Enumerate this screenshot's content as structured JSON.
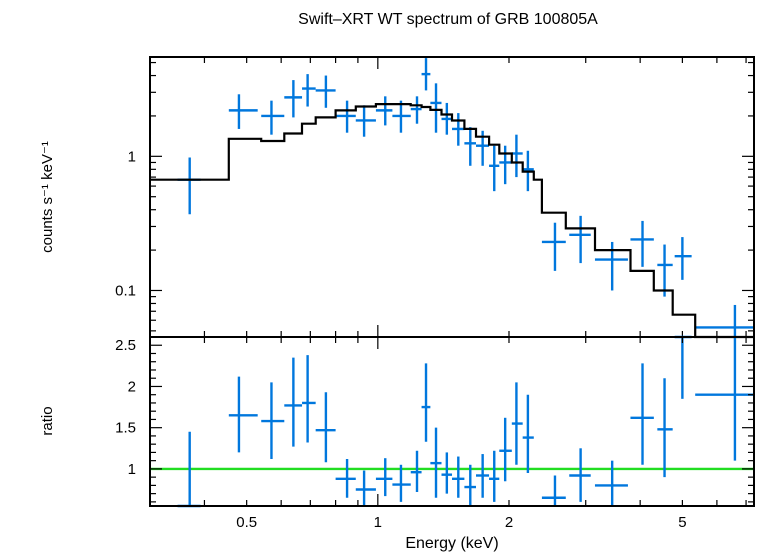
{
  "title": "Swift–XRT WT spectrum of GRB 100805A",
  "colors": {
    "data": "#0077dd",
    "model": "#000000",
    "unity": "#22dd22",
    "frame": "#000000"
  },
  "chart_data": [
    {
      "panel": "top",
      "type": "scatter",
      "title": "Swift–XRT WT spectrum of GRB 100805A",
      "xlabel": "",
      "ylabel": "counts s⁻¹ keV⁻¹",
      "xscale": "log",
      "yscale": "log",
      "xlim": [
        0.3,
        7.3
      ],
      "ylim": [
        0.045,
        5.5
      ],
      "ytick_labels": [
        {
          "value": 1,
          "label": "1"
        },
        {
          "value": 0.1,
          "label": "0.1"
        }
      ],
      "series": [
        {
          "kind": "data-with-errors",
          "points": [
            {
              "x": 0.37,
              "xlo": 0.347,
              "xhi": 0.392,
              "y": 0.67,
              "ylo": 0.37,
              "yhi": 0.98
            },
            {
              "x": 0.48,
              "xlo": 0.455,
              "xhi": 0.53,
              "y": 2.2,
              "ylo": 1.6,
              "yhi": 2.9
            },
            {
              "x": 0.57,
              "xlo": 0.54,
              "xhi": 0.61,
              "y": 2.0,
              "ylo": 1.45,
              "yhi": 2.6
            },
            {
              "x": 0.64,
              "xlo": 0.61,
              "xhi": 0.67,
              "y": 2.75,
              "ylo": 1.95,
              "yhi": 3.7
            },
            {
              "x": 0.69,
              "xlo": 0.67,
              "xhi": 0.72,
              "y": 3.2,
              "ylo": 2.35,
              "yhi": 4.1
            },
            {
              "x": 0.76,
              "xlo": 0.72,
              "xhi": 0.8,
              "y": 3.1,
              "ylo": 2.3,
              "yhi": 4.0
            },
            {
              "x": 0.85,
              "xlo": 0.8,
              "xhi": 0.89,
              "y": 2.0,
              "ylo": 1.5,
              "yhi": 2.6
            },
            {
              "x": 0.93,
              "xlo": 0.89,
              "xhi": 0.99,
              "y": 1.85,
              "ylo": 1.4,
              "yhi": 2.4
            },
            {
              "x": 1.04,
              "xlo": 0.99,
              "xhi": 1.08,
              "y": 2.2,
              "ylo": 1.7,
              "yhi": 2.8
            },
            {
              "x": 1.13,
              "xlo": 1.08,
              "xhi": 1.19,
              "y": 2.0,
              "ylo": 1.5,
              "yhi": 2.6
            },
            {
              "x": 1.23,
              "xlo": 1.19,
              "xhi": 1.26,
              "y": 2.25,
              "ylo": 1.75,
              "yhi": 2.8
            },
            {
              "x": 1.29,
              "xlo": 1.26,
              "xhi": 1.32,
              "y": 4.1,
              "ylo": 3.1,
              "yhi": 5.4
            },
            {
              "x": 1.36,
              "xlo": 1.32,
              "xhi": 1.4,
              "y": 2.5,
              "ylo": 1.5,
              "yhi": 3.5
            },
            {
              "x": 1.44,
              "xlo": 1.4,
              "xhi": 1.48,
              "y": 1.9,
              "ylo": 1.45,
              "yhi": 2.5
            },
            {
              "x": 1.53,
              "xlo": 1.48,
              "xhi": 1.58,
              "y": 1.6,
              "ylo": 1.2,
              "yhi": 2.1
            },
            {
              "x": 1.63,
              "xlo": 1.58,
              "xhi": 1.68,
              "y": 1.25,
              "ylo": 0.85,
              "yhi": 1.65
            },
            {
              "x": 1.74,
              "xlo": 1.68,
              "xhi": 1.8,
              "y": 1.2,
              "ylo": 0.85,
              "yhi": 1.55
            },
            {
              "x": 1.85,
              "xlo": 1.8,
              "xhi": 1.9,
              "y": 0.85,
              "ylo": 0.55,
              "yhi": 1.2
            },
            {
              "x": 1.96,
              "xlo": 1.9,
              "xhi": 2.03,
              "y": 0.9,
              "ylo": 0.62,
              "yhi": 1.2
            },
            {
              "x": 2.08,
              "xlo": 2.03,
              "xhi": 2.15,
              "y": 1.05,
              "ylo": 0.7,
              "yhi": 1.45
            },
            {
              "x": 2.21,
              "xlo": 2.15,
              "xhi": 2.28,
              "y": 0.8,
              "ylo": 0.55,
              "yhi": 1.1
            },
            {
              "x": 2.55,
              "xlo": 2.38,
              "xhi": 2.7,
              "y": 0.23,
              "ylo": 0.14,
              "yhi": 0.32
            },
            {
              "x": 2.92,
              "xlo": 2.75,
              "xhi": 3.08,
              "y": 0.26,
              "ylo": 0.16,
              "yhi": 0.36
            },
            {
              "x": 3.45,
              "xlo": 3.15,
              "xhi": 3.75,
              "y": 0.17,
              "ylo": 0.1,
              "yhi": 0.23
            },
            {
              "x": 4.05,
              "xlo": 3.8,
              "xhi": 4.3,
              "y": 0.24,
              "ylo": 0.15,
              "yhi": 0.33
            },
            {
              "x": 4.55,
              "xlo": 4.38,
              "xhi": 4.75,
              "y": 0.155,
              "ylo": 0.09,
              "yhi": 0.22
            },
            {
              "x": 5.0,
              "xlo": 4.8,
              "xhi": 5.25,
              "y": 0.18,
              "ylo": 0.12,
              "yhi": 0.25
            },
            {
              "x": 6.6,
              "xlo": 5.35,
              "xhi": 7.3,
              "y": 0.053,
              "ylo": 0.03,
              "yhi": 0.078
            }
          ]
        },
        {
          "kind": "model-step",
          "steps": [
            {
              "xlo": 0.3,
              "xhi": 0.455,
              "y": 0.67
            },
            {
              "xlo": 0.455,
              "xhi": 0.54,
              "y": 1.35
            },
            {
              "xlo": 0.54,
              "xhi": 0.61,
              "y": 1.3
            },
            {
              "xlo": 0.61,
              "xhi": 0.67,
              "y": 1.48
            },
            {
              "xlo": 0.67,
              "xhi": 0.72,
              "y": 1.75
            },
            {
              "xlo": 0.72,
              "xhi": 0.8,
              "y": 1.95
            },
            {
              "xlo": 0.8,
              "xhi": 0.89,
              "y": 2.2
            },
            {
              "xlo": 0.89,
              "xhi": 0.99,
              "y": 2.35
            },
            {
              "xlo": 0.99,
              "xhi": 1.08,
              "y": 2.45
            },
            {
              "xlo": 1.08,
              "xhi": 1.19,
              "y": 2.45
            },
            {
              "xlo": 1.19,
              "xhi": 1.26,
              "y": 2.4
            },
            {
              "xlo": 1.26,
              "xhi": 1.32,
              "y": 2.33
            },
            {
              "xlo": 1.32,
              "xhi": 1.4,
              "y": 2.22
            },
            {
              "xlo": 1.4,
              "xhi": 1.48,
              "y": 2.05
            },
            {
              "xlo": 1.48,
              "xhi": 1.58,
              "y": 1.85
            },
            {
              "xlo": 1.58,
              "xhi": 1.68,
              "y": 1.6
            },
            {
              "xlo": 1.68,
              "xhi": 1.8,
              "y": 1.4
            },
            {
              "xlo": 1.8,
              "xhi": 1.9,
              "y": 1.22
            },
            {
              "xlo": 1.9,
              "xhi": 2.03,
              "y": 1.05
            },
            {
              "xlo": 2.03,
              "xhi": 2.15,
              "y": 0.9
            },
            {
              "xlo": 2.15,
              "xhi": 2.28,
              "y": 0.77
            },
            {
              "xlo": 2.28,
              "xhi": 2.38,
              "y": 0.67
            },
            {
              "xlo": 2.38,
              "xhi": 2.7,
              "y": 0.38
            },
            {
              "xlo": 2.7,
              "xhi": 3.15,
              "y": 0.29
            },
            {
              "xlo": 3.15,
              "xhi": 3.8,
              "y": 0.2
            },
            {
              "xlo": 3.8,
              "xhi": 4.3,
              "y": 0.14
            },
            {
              "xlo": 4.3,
              "xhi": 4.75,
              "y": 0.1
            },
            {
              "xlo": 4.75,
              "xhi": 5.35,
              "y": 0.066
            },
            {
              "xlo": 5.35,
              "xhi": 7.3,
              "y": 0.03
            }
          ]
        }
      ]
    },
    {
      "panel": "bottom",
      "type": "scatter",
      "xlabel": "Energy (keV)",
      "ylabel": "ratio",
      "xscale": "log",
      "yscale": "linear",
      "xlim": [
        0.3,
        7.3
      ],
      "ylim": [
        0.55,
        2.6
      ],
      "xtick_labels": [
        {
          "value": 0.5,
          "label": "0.5"
        },
        {
          "value": 1,
          "label": "1"
        },
        {
          "value": 2,
          "label": "2"
        },
        {
          "value": 5,
          "label": "5"
        }
      ],
      "ytick_labels": [
        {
          "value": 1,
          "label": "1"
        },
        {
          "value": 1.5,
          "label": "1.5"
        },
        {
          "value": 2,
          "label": "2"
        },
        {
          "value": 2.5,
          "label": "2.5"
        }
      ],
      "reference_line": {
        "y": 1
      },
      "series": [
        {
          "kind": "data-with-errors",
          "points": [
            {
              "x": 0.37,
              "xlo": 0.347,
              "xhi": 0.392,
              "y": 0.45,
              "ylo": 0.45,
              "yhi": 1.45
            },
            {
              "x": 0.48,
              "xlo": 0.455,
              "xhi": 0.53,
              "y": 1.65,
              "ylo": 1.2,
              "yhi": 2.12
            },
            {
              "x": 0.57,
              "xlo": 0.54,
              "xhi": 0.61,
              "y": 1.58,
              "ylo": 1.12,
              "yhi": 2.05
            },
            {
              "x": 0.64,
              "xlo": 0.61,
              "xhi": 0.67,
              "y": 1.77,
              "ylo": 1.27,
              "yhi": 2.35
            },
            {
              "x": 0.69,
              "xlo": 0.67,
              "xhi": 0.72,
              "y": 1.8,
              "ylo": 1.32,
              "yhi": 2.38
            },
            {
              "x": 0.76,
              "xlo": 0.72,
              "xhi": 0.8,
              "y": 1.47,
              "ylo": 1.08,
              "yhi": 1.93
            },
            {
              "x": 0.85,
              "xlo": 0.8,
              "xhi": 0.89,
              "y": 0.88,
              "ylo": 0.65,
              "yhi": 1.12
            },
            {
              "x": 0.93,
              "xlo": 0.89,
              "xhi": 0.99,
              "y": 0.75,
              "ylo": 0.55,
              "yhi": 0.98
            },
            {
              "x": 1.04,
              "xlo": 0.99,
              "xhi": 1.08,
              "y": 0.88,
              "ylo": 0.67,
              "yhi": 1.13
            },
            {
              "x": 1.13,
              "xlo": 1.08,
              "xhi": 1.19,
              "y": 0.81,
              "ylo": 0.6,
              "yhi": 1.05
            },
            {
              "x": 1.23,
              "xlo": 1.19,
              "xhi": 1.26,
              "y": 0.96,
              "ylo": 0.72,
              "yhi": 1.22
            },
            {
              "x": 1.29,
              "xlo": 1.26,
              "xhi": 1.32,
              "y": 1.75,
              "ylo": 1.33,
              "yhi": 2.28
            },
            {
              "x": 1.36,
              "xlo": 1.32,
              "xhi": 1.4,
              "y": 1.07,
              "ylo": 0.65,
              "yhi": 1.5
            },
            {
              "x": 1.44,
              "xlo": 1.4,
              "xhi": 1.48,
              "y": 0.93,
              "ylo": 0.7,
              "yhi": 1.2
            },
            {
              "x": 1.53,
              "xlo": 1.48,
              "xhi": 1.58,
              "y": 0.88,
              "ylo": 0.65,
              "yhi": 1.15
            },
            {
              "x": 1.63,
              "xlo": 1.58,
              "xhi": 1.68,
              "y": 0.78,
              "ylo": 0.55,
              "yhi": 1.05
            },
            {
              "x": 1.74,
              "xlo": 1.68,
              "xhi": 1.8,
              "y": 0.92,
              "ylo": 0.65,
              "yhi": 1.18
            },
            {
              "x": 1.85,
              "xlo": 1.8,
              "xhi": 1.9,
              "y": 0.88,
              "ylo": 0.6,
              "yhi": 1.22
            },
            {
              "x": 1.96,
              "xlo": 1.9,
              "xhi": 2.03,
              "y": 1.22,
              "ylo": 0.85,
              "yhi": 1.62
            },
            {
              "x": 2.08,
              "xlo": 2.03,
              "xhi": 2.15,
              "y": 1.55,
              "ylo": 1.05,
              "yhi": 2.05
            },
            {
              "x": 2.21,
              "xlo": 2.15,
              "xhi": 2.28,
              "y": 1.38,
              "ylo": 0.95,
              "yhi": 1.9
            },
            {
              "x": 2.55,
              "xlo": 2.38,
              "xhi": 2.7,
              "y": 0.65,
              "ylo": 0.55,
              "yhi": 0.92
            },
            {
              "x": 2.92,
              "xlo": 2.75,
              "xhi": 3.08,
              "y": 0.92,
              "ylo": 0.6,
              "yhi": 1.25
            },
            {
              "x": 3.45,
              "xlo": 3.15,
              "xhi": 3.75,
              "y": 0.8,
              "ylo": 0.55,
              "yhi": 1.1
            },
            {
              "x": 4.05,
              "xlo": 3.8,
              "xhi": 4.3,
              "y": 1.62,
              "ylo": 1.05,
              "yhi": 2.28
            },
            {
              "x": 4.55,
              "xlo": 4.38,
              "xhi": 4.75,
              "y": 1.48,
              "ylo": 0.9,
              "yhi": 2.1
            },
            {
              "x": 5.0,
              "xlo": 4.8,
              "xhi": 5.25,
              "y": 2.6,
              "ylo": 1.85,
              "yhi": 2.6
            },
            {
              "x": 6.6,
              "xlo": 5.35,
              "xhi": 7.3,
              "y": 1.9,
              "ylo": 1.1,
              "yhi": 2.6
            }
          ]
        }
      ]
    }
  ]
}
